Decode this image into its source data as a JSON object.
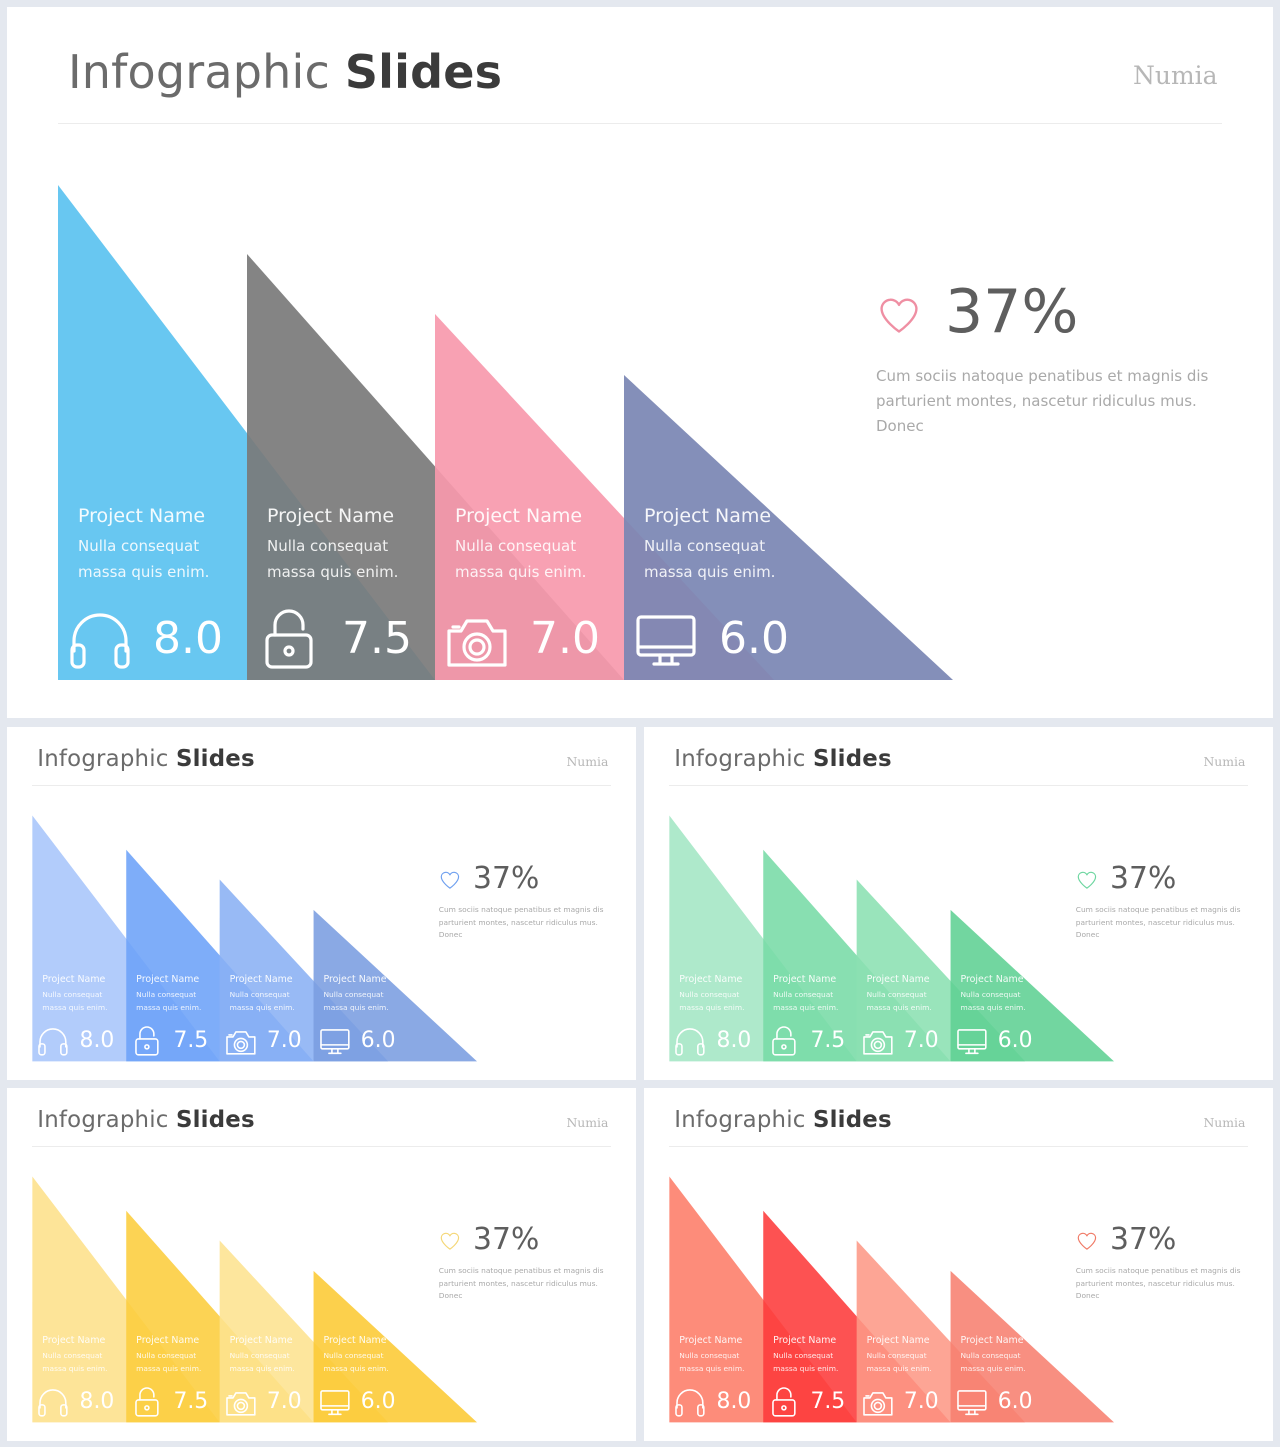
{
  "slides": [
    {
      "title_regular": "Infographic",
      "title_bold": "Slides",
      "brand": "Numia",
      "stat": "37%",
      "description": "Cum sociis natoque penatibus et magnis dis parturient montes, nascetur ridiculus mus. Donec",
      "heart_color": "#ef8fa3",
      "colors": [
        "#5bc2f0",
        "#7a7a7a",
        "#f799ac",
        "#7a85b3"
      ],
      "projects": [
        {
          "name": "Project Name",
          "line1": "Nulla consequat",
          "line2": "massa quis enim.",
          "score": "8.0",
          "icon": "headphones-icon"
        },
        {
          "name": "Project Name",
          "line1": "Nulla consequat",
          "line2": "massa quis enim.",
          "score": "7.5",
          "icon": "lock-icon"
        },
        {
          "name": "Project Name",
          "line1": "Nulla consequat",
          "line2": "massa quis enim.",
          "score": "7.0",
          "icon": "camera-icon"
        },
        {
          "name": "Project Name",
          "line1": "Nulla consequat",
          "line2": "massa quis enim.",
          "score": "6.0",
          "icon": "monitor-icon"
        }
      ]
    },
    {
      "title_regular": "Infographic",
      "title_bold": "Slides",
      "brand": "Numia",
      "stat": "37%",
      "description": "Cum sociis natoque penatibus et magnis dis parturient montes, nascetur ridiculus mus. Donec",
      "heart_color": "#6fa0ef",
      "colors": [
        "#a7c5fb",
        "#6ca2f8",
        "#8ab1f4",
        "#7a9de0"
      ],
      "projects": [
        {
          "name": "Project Name",
          "line1": "Nulla consequat",
          "line2": "massa quis enim.",
          "score": "8.0",
          "icon": "headphones-icon"
        },
        {
          "name": "Project Name",
          "line1": "Nulla consequat",
          "line2": "massa quis enim.",
          "score": "7.5",
          "icon": "lock-icon"
        },
        {
          "name": "Project Name",
          "line1": "Nulla consequat",
          "line2": "massa quis enim.",
          "score": "7.0",
          "icon": "camera-icon"
        },
        {
          "name": "Project Name",
          "line1": "Nulla consequat",
          "line2": "massa quis enim.",
          "score": "6.0",
          "icon": "monitor-icon"
        }
      ]
    },
    {
      "title_regular": "Infographic",
      "title_bold": "Slides",
      "brand": "Numia",
      "stat": "37%",
      "description": "Cum sociis natoque penatibus et magnis dis parturient montes, nascetur ridiculus mus. Donec",
      "heart_color": "#6dd6a0",
      "colors": [
        "#a3e6c4",
        "#78dba6",
        "#8be0b2",
        "#5fd093"
      ],
      "projects": [
        {
          "name": "Project Name",
          "line1": "Nulla consequat",
          "line2": "massa quis enim.",
          "score": "8.0",
          "icon": "headphones-icon"
        },
        {
          "name": "Project Name",
          "line1": "Nulla consequat",
          "line2": "massa quis enim.",
          "score": "7.5",
          "icon": "lock-icon"
        },
        {
          "name": "Project Name",
          "line1": "Nulla consequat",
          "line2": "massa quis enim.",
          "score": "7.0",
          "icon": "camera-icon"
        },
        {
          "name": "Project Name",
          "line1": "Nulla consequat",
          "line2": "massa quis enim.",
          "score": "6.0",
          "icon": "monitor-icon"
        }
      ]
    },
    {
      "title_regular": "Infographic",
      "title_bold": "Slides",
      "brand": "Numia",
      "stat": "37%",
      "description": "Cum sociis natoque penatibus et magnis dis parturient montes, nascetur ridiculus mus. Donec",
      "heart_color": "#f5d776",
      "colors": [
        "#fde08a",
        "#fccd3c",
        "#fde290",
        "#fcca33"
      ],
      "projects": [
        {
          "name": "Project Name",
          "line1": "Nulla consequat",
          "line2": "massa quis enim.",
          "score": "8.0",
          "icon": "headphones-icon"
        },
        {
          "name": "Project Name",
          "line1": "Nulla consequat",
          "line2": "massa quis enim.",
          "score": "7.5",
          "icon": "lock-icon"
        },
        {
          "name": "Project Name",
          "line1": "Nulla consequat",
          "line2": "massa quis enim.",
          "score": "7.0",
          "icon": "camera-icon"
        },
        {
          "name": "Project Name",
          "line1": "Nulla consequat",
          "line2": "massa quis enim.",
          "score": "6.0",
          "icon": "monitor-icon"
        }
      ]
    },
    {
      "title_regular": "Infographic",
      "title_bold": "Slides",
      "brand": "Numia",
      "stat": "37%",
      "description": "Cum sociis natoque penatibus et magnis dis parturient montes, nascetur ridiculus mus. Donec",
      "heart_color": "#f07a66",
      "colors": [
        "#fd7c68",
        "#fd3a3a",
        "#fd9886",
        "#f7806f"
      ],
      "projects": [
        {
          "name": "Project Name",
          "line1": "Nulla consequat",
          "line2": "massa quis enim.",
          "score": "8.0",
          "icon": "headphones-icon"
        },
        {
          "name": "Project Name",
          "line1": "Nulla consequat",
          "line2": "massa quis enim.",
          "score": "7.5",
          "icon": "lock-icon"
        },
        {
          "name": "Project Name",
          "line1": "Nulla consequat",
          "line2": "massa quis enim.",
          "score": "7.0",
          "icon": "camera-icon"
        },
        {
          "name": "Project Name",
          "line1": "Nulla consequat",
          "line2": "massa quis enim.",
          "score": "6.0",
          "icon": "monitor-icon"
        }
      ]
    }
  ]
}
